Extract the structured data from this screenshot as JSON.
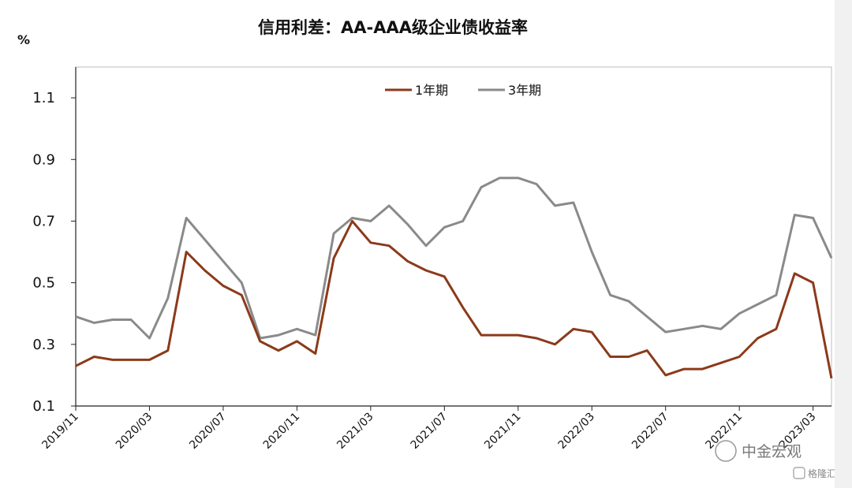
{
  "chart_data": {
    "type": "line",
    "title": "信用利差：AA-AAA级企业债收益率",
    "ylabel": "%",
    "xlabel": "",
    "ylim": [
      0.1,
      1.2
    ],
    "yticks": [
      "0.1",
      "0.3",
      "0.5",
      "0.7",
      "0.9",
      "1.1"
    ],
    "x_ticks": [
      "2019/11",
      "2020/03",
      "2020/07",
      "2020/11",
      "2021/03",
      "2021/07",
      "2021/11",
      "2022/03",
      "2022/07",
      "2022/11",
      "2023/03"
    ],
    "x_range": [
      "2019-11",
      "2023-04"
    ],
    "legend_position": "top-center",
    "grid": false,
    "x": [
      "2019-11",
      "2019-12",
      "2020-01",
      "2020-02",
      "2020-03",
      "2020-04",
      "2020-05",
      "2020-06",
      "2020-07",
      "2020-08",
      "2020-09",
      "2020-10",
      "2020-11",
      "2020-12",
      "2021-01",
      "2021-02",
      "2021-03",
      "2021-04",
      "2021-05",
      "2021-06",
      "2021-07",
      "2021-08",
      "2021-09",
      "2021-10",
      "2021-11",
      "2021-12",
      "2022-01",
      "2022-02",
      "2022-03",
      "2022-04",
      "2022-05",
      "2022-06",
      "2022-07",
      "2022-08",
      "2022-09",
      "2022-10",
      "2022-11",
      "2022-12",
      "2023-01",
      "2023-02",
      "2023-03",
      "2023-04"
    ],
    "series": [
      {
        "name": "1年期",
        "color": "#8b3a1a",
        "values": [
          0.23,
          0.26,
          0.25,
          0.25,
          0.25,
          0.28,
          0.6,
          0.54,
          0.49,
          0.46,
          0.31,
          0.28,
          0.31,
          0.27,
          0.58,
          0.7,
          0.63,
          0.62,
          0.57,
          0.54,
          0.52,
          0.42,
          0.33,
          0.33,
          0.33,
          0.32,
          0.3,
          0.35,
          0.34,
          0.26,
          0.26,
          0.28,
          0.2,
          0.22,
          0.22,
          0.24,
          0.26,
          0.32,
          0.35,
          0.53,
          0.5,
          0.19
        ]
      },
      {
        "name": "3年期",
        "color": "#8a8a8a",
        "values": [
          0.39,
          0.37,
          0.38,
          0.38,
          0.32,
          0.45,
          0.71,
          0.64,
          0.57,
          0.5,
          0.32,
          0.33,
          0.35,
          0.33,
          0.66,
          0.71,
          0.7,
          0.75,
          0.69,
          0.62,
          0.68,
          0.7,
          0.81,
          0.84,
          0.84,
          0.82,
          0.75,
          0.76,
          0.6,
          0.46,
          0.44,
          0.39,
          0.34,
          0.35,
          0.36,
          0.35,
          0.4,
          0.43,
          0.46,
          0.72,
          0.71,
          0.58
        ]
      }
    ]
  },
  "watermark": {
    "main": "中金宏观",
    "sub": "格隆汇"
  }
}
